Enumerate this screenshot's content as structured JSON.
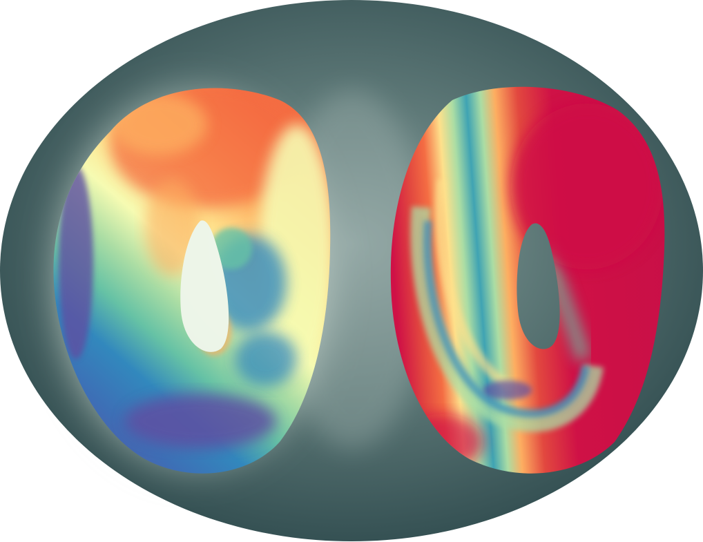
{
  "image": {
    "subject": "two-torus-rendering",
    "colors": {
      "page_background": "#ffffff",
      "ellipse_outer": "#2e4a4d",
      "ellipse_inner": "#7f9695",
      "glow": "#f4fbee",
      "spectral_purple": "#5e4fa2",
      "spectral_blue": "#3288bd",
      "spectral_teal": "#66c2a5",
      "spectral_green": "#abdda4",
      "spectral_cream": "#f6fbb2",
      "spectral_yellow": "#fee08b",
      "spectral_orange": "#f46d43",
      "spectral_red": "#d53e4f",
      "spectral_crimson": "#cf1146"
    },
    "objects": [
      {
        "name": "left-torus",
        "dominant_color": "cream-orange-blue"
      },
      {
        "name": "right-torus",
        "dominant_color": "crimson-red"
      }
    ]
  }
}
